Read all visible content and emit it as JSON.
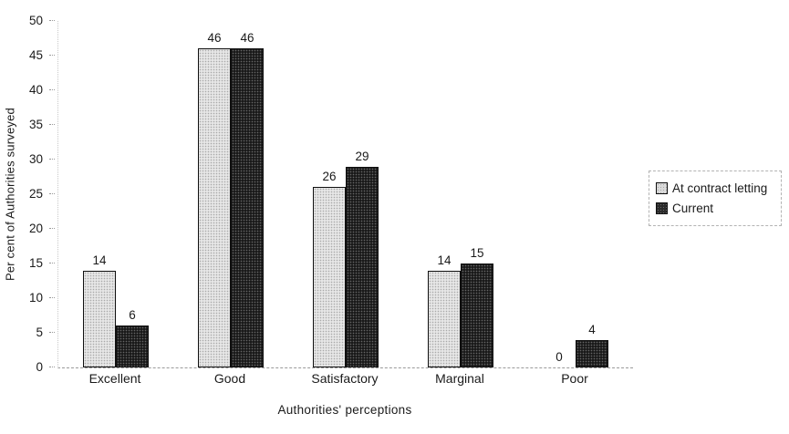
{
  "chart_data": {
    "type": "bar",
    "title": "",
    "xlabel": "Authorities' perceptions",
    "ylabel": "Per cent of Authorities surveyed",
    "categories": [
      "Excellent",
      "Good",
      "Satisfactory",
      "Marginal",
      "Poor"
    ],
    "series": [
      {
        "name": "At contract letting",
        "values": [
          14,
          46,
          26,
          14,
          0
        ],
        "color": "#dadada"
      },
      {
        "name": "Current",
        "values": [
          6,
          46,
          29,
          15,
          4
        ],
        "color": "#2b2b2b"
      }
    ],
    "yticks": [
      0,
      5,
      10,
      15,
      20,
      25,
      30,
      35,
      40,
      45,
      50
    ],
    "ylim": [
      0,
      50
    ],
    "grid": false,
    "data_labels": true,
    "legend_position": "right"
  },
  "colors": {
    "background": "#ffffff",
    "bar_light": "#dadada",
    "bar_dark": "#2b2b2b",
    "bar_border": "#101010",
    "axis_line": "#9a9a9a",
    "text": "#1a1a1a"
  }
}
